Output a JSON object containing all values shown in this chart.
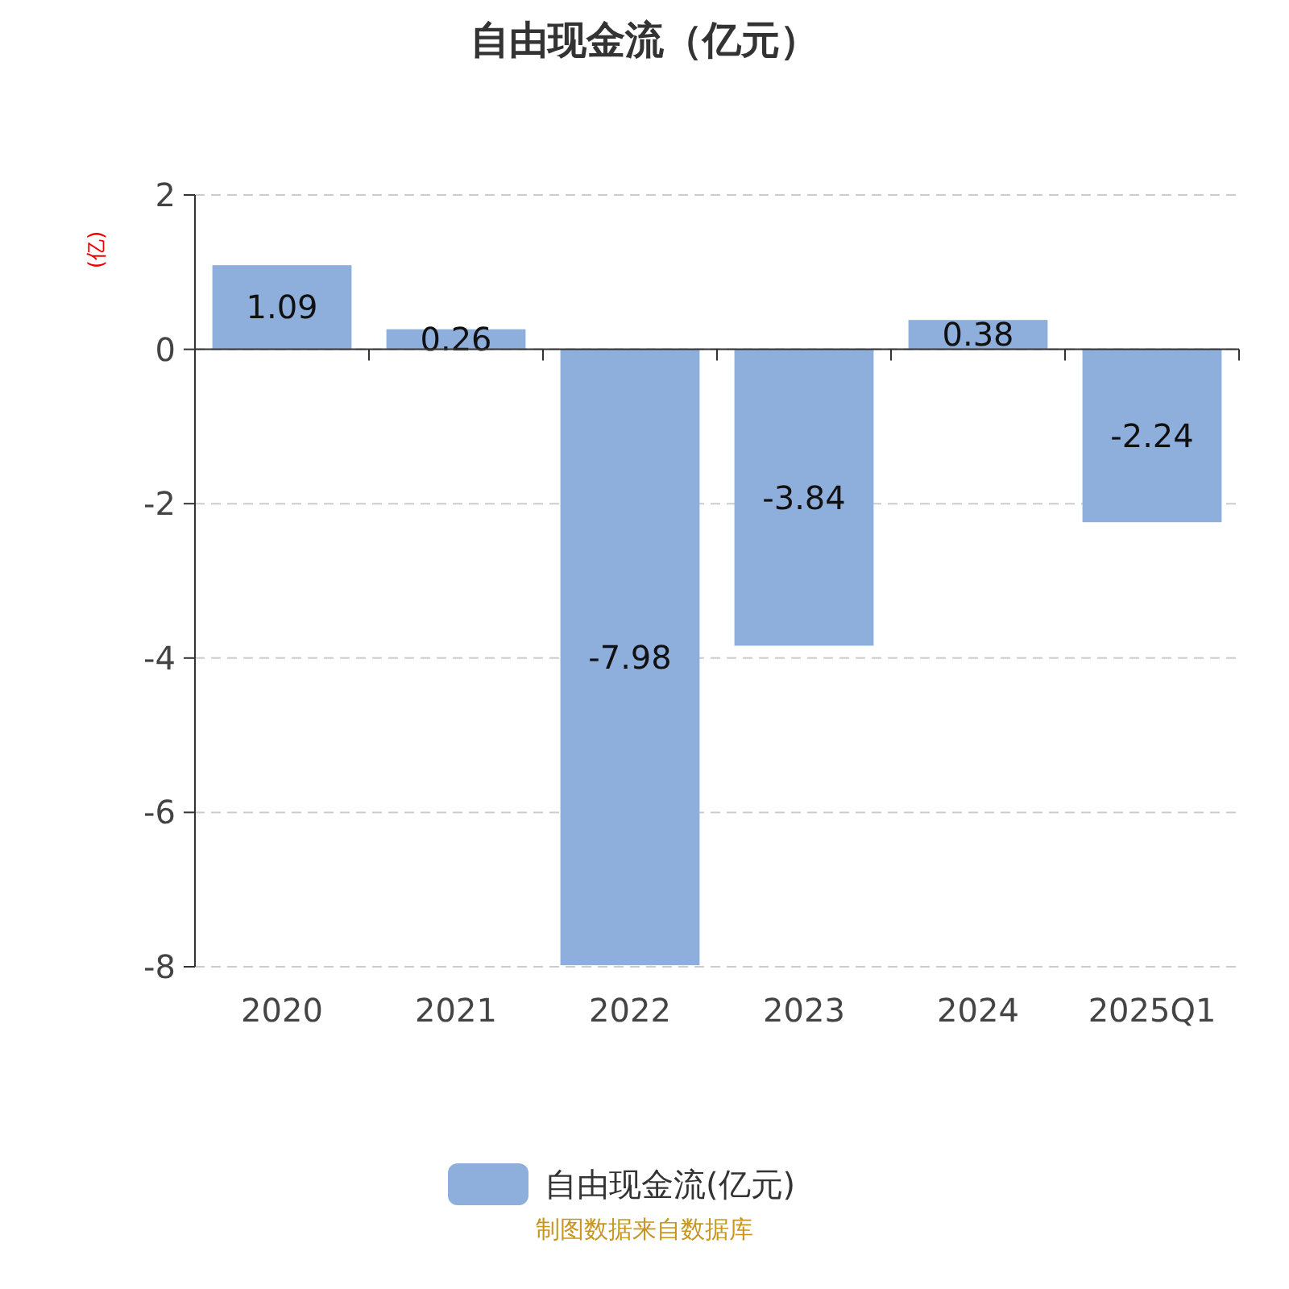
{
  "chart_data": {
    "type": "bar",
    "title": "自由现金流（亿元）",
    "ylabel": "(亿)",
    "categories": [
      "2020",
      "2021",
      "2022",
      "2023",
      "2024",
      "2025Q1"
    ],
    "series": [
      {
        "name": "自由现金流(亿元)",
        "color": "#8eaedb",
        "values": [
          1.09,
          0.26,
          -7.98,
          -3.84,
          0.38,
          -2.24
        ]
      }
    ],
    "ylim": [
      -8,
      2
    ],
    "yticks": [
      -8,
      -6,
      -4,
      -2,
      0,
      2
    ],
    "grid": "y",
    "legend": "bottom",
    "data_labels": true,
    "annotations": [
      "制图数据来自数据库"
    ]
  }
}
